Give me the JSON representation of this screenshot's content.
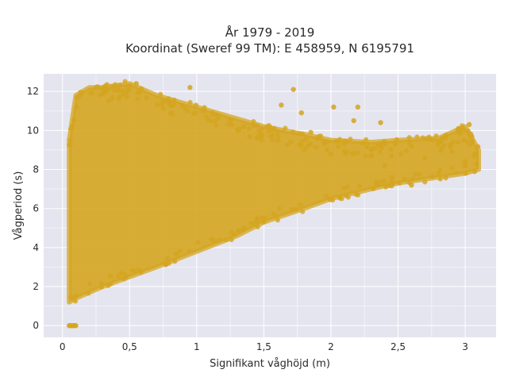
{
  "chart_data": {
    "type": "scatter",
    "title_lines": [
      "År 1979 - 2019",
      "Koordinat (Sweref 99 TM): E 458959, N 6195791"
    ],
    "xlabel": "Signifikant våghöjd (m)",
    "ylabel": "Vågperiod (s)",
    "xlim": [
      -0.14,
      3.23
    ],
    "ylim": [
      -0.6,
      12.9
    ],
    "x_ticks": [
      0,
      0.5,
      1,
      1.5,
      2,
      2.5,
      3
    ],
    "x_tick_labels": [
      "0",
      "0,5",
      "1",
      "1,5",
      "2",
      "2,5",
      "3"
    ],
    "y_ticks": [
      0,
      2,
      4,
      6,
      8,
      10,
      12
    ],
    "y_tick_labels": [
      "0",
      "2",
      "4",
      "6",
      "8",
      "10",
      "12"
    ],
    "grid": true,
    "legend": "none",
    "marker_color": "#d4a520",
    "background_color": "#e5e5ef",
    "envelope": {
      "x": [
        0.05,
        0.1,
        0.2,
        0.3,
        0.5,
        0.7,
        1.0,
        1.3,
        1.5,
        1.8,
        2.0,
        2.3,
        2.5,
        2.8,
        3.0,
        3.1
      ],
      "y_min": [
        1.2,
        1.4,
        1.7,
        2.0,
        2.5,
        3.0,
        3.8,
        4.6,
        5.3,
        6.0,
        6.5,
        7.0,
        7.3,
        7.6,
        7.8,
        8.0
      ],
      "y_max": [
        9.5,
        11.8,
        12.2,
        12.2,
        12.4,
        11.8,
        11.2,
        10.6,
        10.2,
        9.8,
        9.5,
        9.4,
        9.5,
        9.6,
        10.2,
        9.0
      ]
    },
    "points": [
      [
        0.05,
        0.0
      ],
      [
        0.06,
        0.0
      ],
      [
        0.07,
        0.0
      ],
      [
        0.08,
        0.0
      ],
      [
        0.09,
        0.0
      ],
      [
        0.1,
        0.0
      ],
      [
        0.25,
        12.2
      ],
      [
        0.3,
        12.1
      ],
      [
        0.55,
        12.4
      ],
      [
        0.95,
        12.2
      ],
      [
        1.72,
        12.1
      ],
      [
        2.02,
        11.2
      ],
      [
        2.2,
        11.2
      ],
      [
        1.63,
        11.3
      ],
      [
        1.78,
        10.9
      ],
      [
        2.37,
        10.4
      ],
      [
        2.17,
        10.5
      ],
      [
        3.03,
        10.3
      ],
      [
        2.95,
        10.1
      ],
      [
        2.85,
        9.6
      ],
      [
        2.6,
        9.2
      ],
      [
        3.08,
        8.8
      ],
      [
        3.0,
        8.4
      ],
      [
        2.9,
        8.9
      ],
      [
        2.7,
        8.6
      ],
      [
        2.45,
        8.7
      ],
      [
        2.6,
        7.2
      ],
      [
        2.55,
        7.5
      ],
      [
        2.8,
        7.8
      ],
      [
        2.4,
        8.2
      ],
      [
        2.3,
        9.0
      ],
      [
        2.1,
        9.3
      ],
      [
        2.0,
        8.8
      ],
      [
        1.9,
        9.6
      ],
      [
        1.8,
        9.0
      ],
      [
        1.7,
        9.4
      ],
      [
        1.45,
        9.6
      ],
      [
        1.35,
        10.2
      ],
      [
        1.25,
        10.5
      ],
      [
        1.15,
        10.8
      ],
      [
        1.05,
        11.0
      ],
      [
        1.85,
        9.9
      ]
    ]
  }
}
